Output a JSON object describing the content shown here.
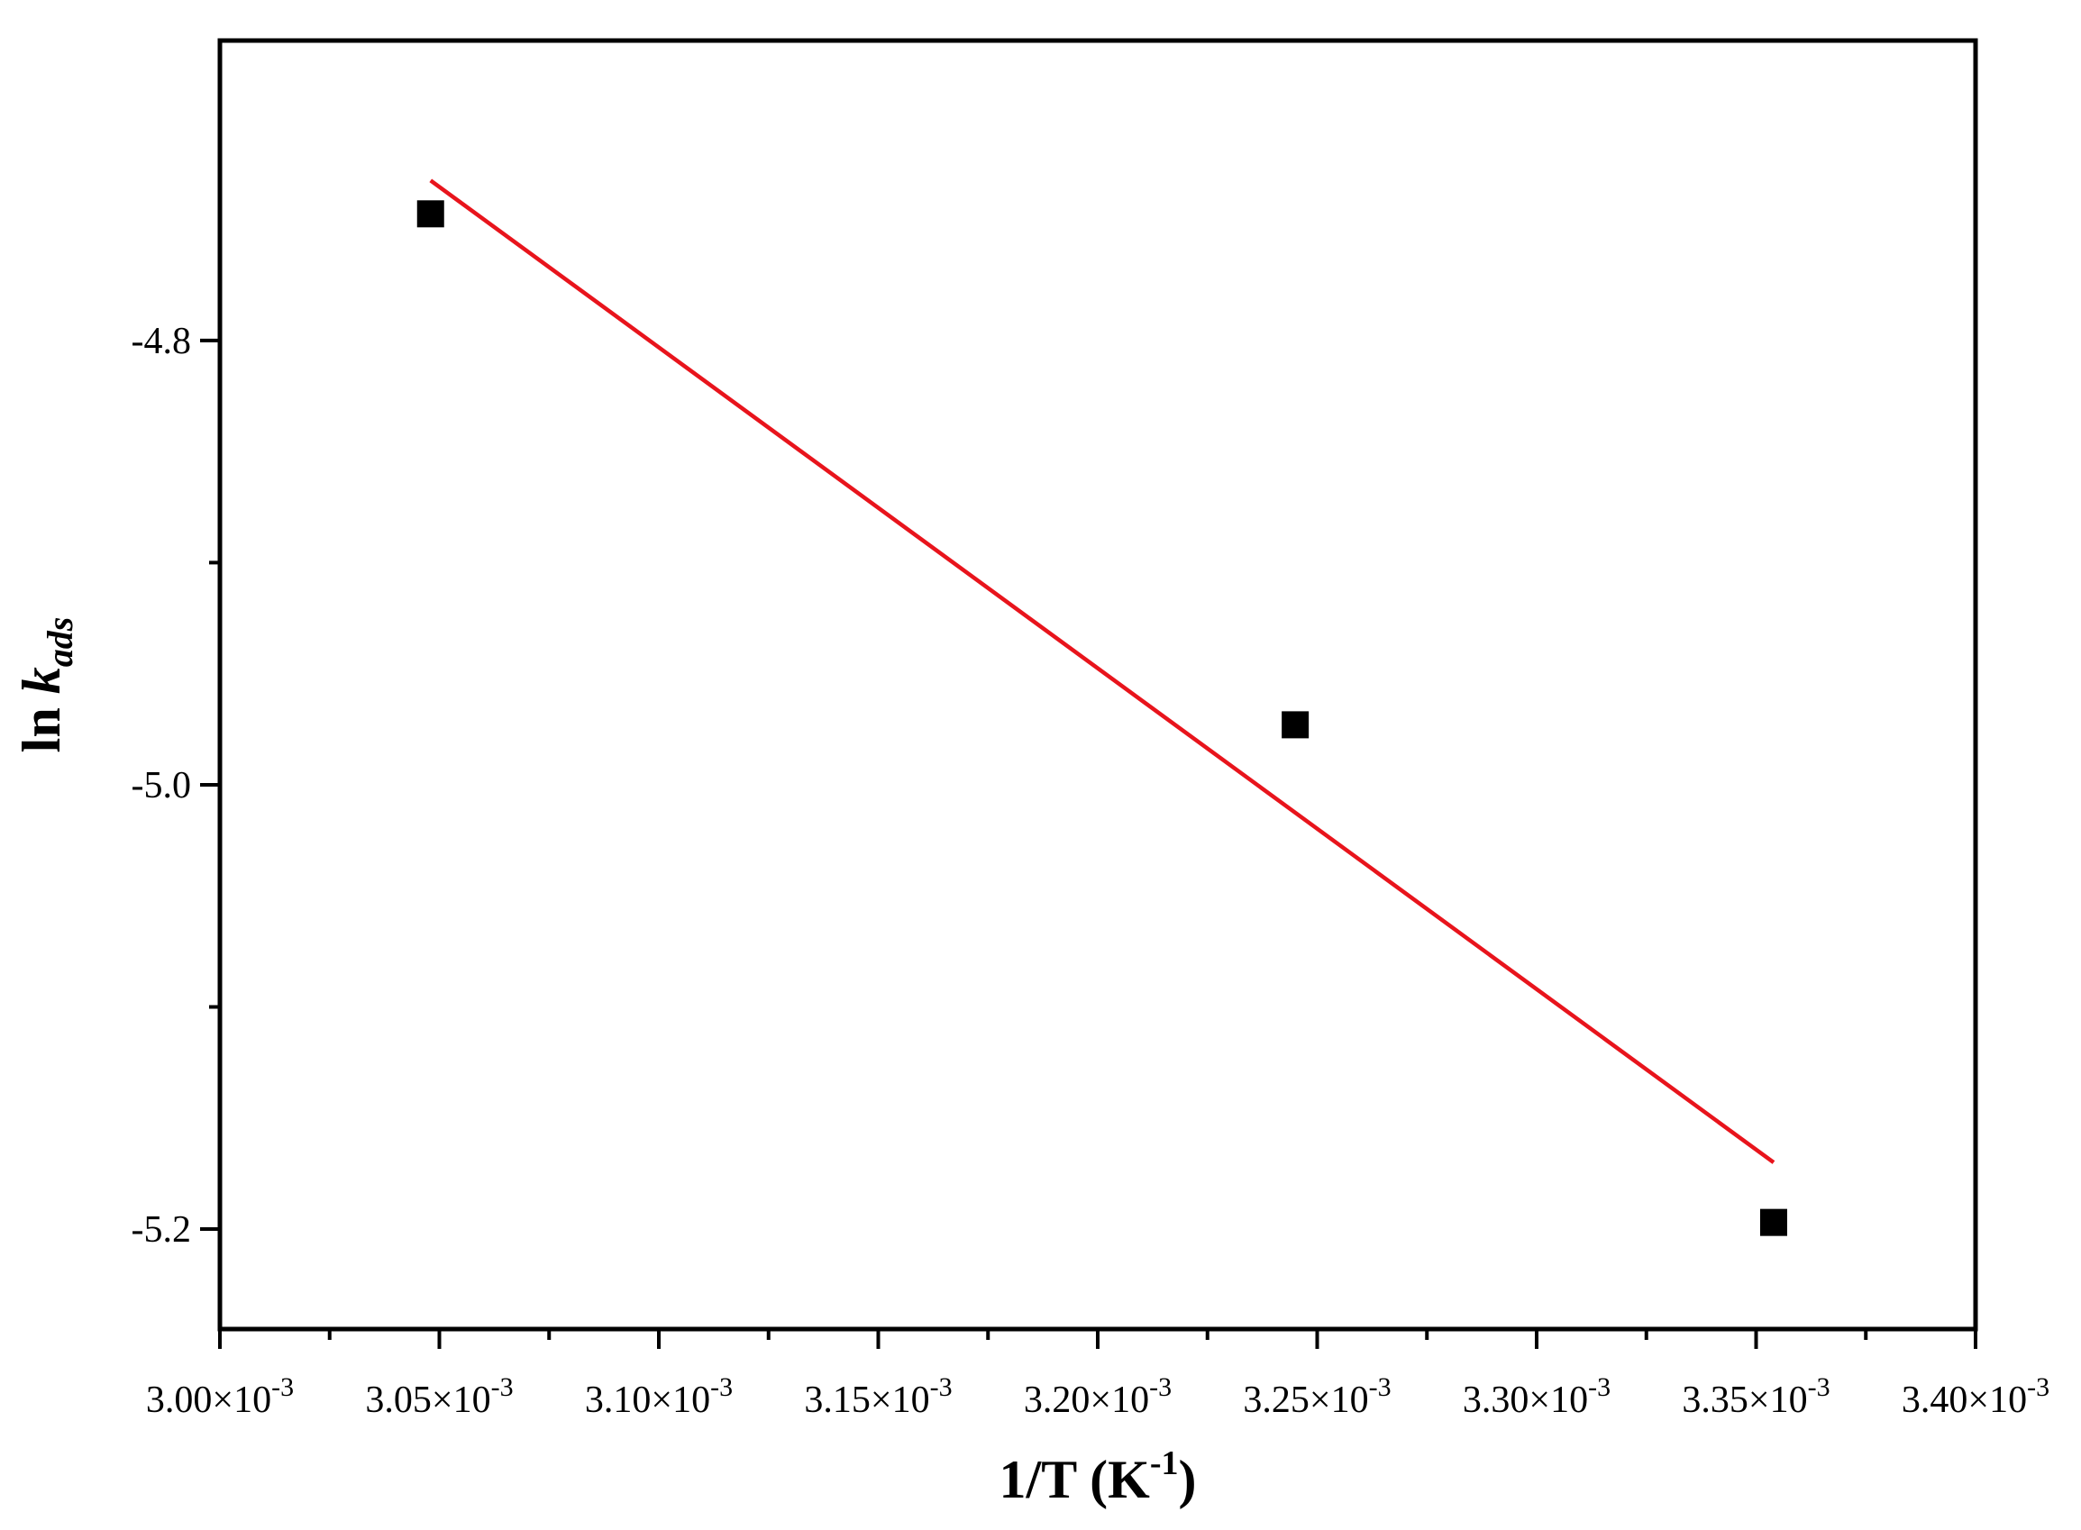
{
  "chart_data": {
    "type": "scatter",
    "title": "",
    "xlabel": {
      "main": "1/T (K",
      "sup": "-1",
      "close": ")"
    },
    "ylabel": {
      "main": "ln ",
      "var": "k",
      "sub": "ads"
    },
    "xlim": [
      0.003,
      0.0034
    ],
    "ylim": [
      -5.245,
      -4.665
    ],
    "x_major_ticks": [
      0.003,
      0.00305,
      0.0031,
      0.00315,
      0.0032,
      0.00325,
      0.0033,
      0.00335,
      0.0034
    ],
    "x_tick_labels": [
      {
        "mantissa": "3.00",
        "exponent": "-3"
      },
      {
        "mantissa": "3.05",
        "exponent": "-3"
      },
      {
        "mantissa": "3.10",
        "exponent": "-3"
      },
      {
        "mantissa": "3.15",
        "exponent": "-3"
      },
      {
        "mantissa": "3.20",
        "exponent": "-3"
      },
      {
        "mantissa": "3.25",
        "exponent": "-3"
      },
      {
        "mantissa": "3.30",
        "exponent": "-3"
      },
      {
        "mantissa": "3.35",
        "exponent": "-3"
      },
      {
        "mantissa": "3.40",
        "exponent": "-3"
      }
    ],
    "y_major_ticks": [
      -4.8,
      -5.0,
      -5.2
    ],
    "y_tick_labels": [
      "-4.8",
      "-5.0",
      "-5.2"
    ],
    "y_minor_ticks": [
      -4.9,
      -5.1
    ],
    "grid": false,
    "series": [
      {
        "kind": "points",
        "marker": "square",
        "color": "#000000",
        "x": [
          0.003048,
          0.003245,
          0.003354
        ],
        "y": [
          -4.743,
          -4.973,
          -5.197
        ]
      },
      {
        "kind": "fit-line",
        "color": "#e8141c",
        "x": [
          0.003048,
          0.003354
        ],
        "y": [
          -4.728,
          -5.17
        ]
      }
    ]
  }
}
